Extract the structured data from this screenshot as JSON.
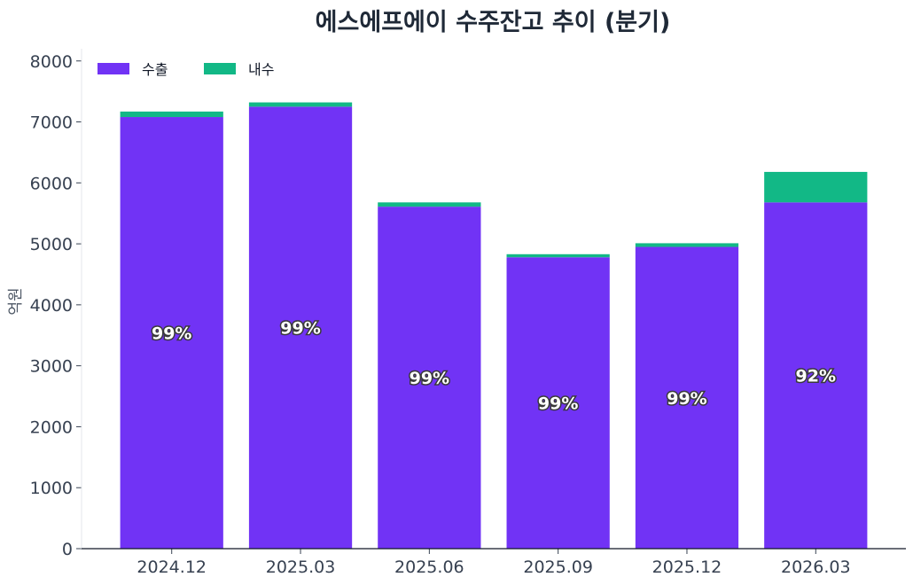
{
  "chart_data": {
    "type": "bar",
    "stacked": true,
    "title": "에스에프에이 수주잔고 추이 (분기)",
    "ylabel": "억원",
    "xlabel": "",
    "ylim": [
      0,
      8200
    ],
    "yticks": [
      0,
      1000,
      2000,
      3000,
      4000,
      5000,
      6000,
      7000,
      8000
    ],
    "categories": [
      "2024.12",
      "2025.03",
      "2025.06",
      "2025.09",
      "2025.12",
      "2026.03"
    ],
    "series": [
      {
        "name": "수출",
        "color": "#7133f5",
        "values": [
          7080,
          7250,
          5610,
          4780,
          4950,
          5680
        ]
      },
      {
        "name": "내수",
        "color": "#12b886",
        "values": [
          90,
          70,
          70,
          50,
          60,
          500
        ]
      }
    ],
    "labels": [
      "99%",
      "99%",
      "99%",
      "99%",
      "99%",
      "92%"
    ],
    "legend": {
      "position": "top-left"
    },
    "grid": false
  }
}
